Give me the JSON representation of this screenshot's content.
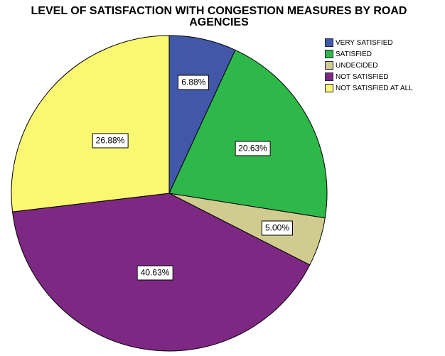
{
  "page": {
    "background_color": "#ffffff"
  },
  "chart_data": {
    "type": "pie",
    "title": "LEVEL OF SATISFACTION WITH CONGESTION MEASURES BY ROAD AGENCIES",
    "title_lines": [
      "LEVEL OF SATISFACTION WITH CONGESTION MEASURES BY ROAD",
      "AGENCIES"
    ],
    "categories": [
      "VERY SATISFIED",
      "SATISFIED",
      "UNDECIDED",
      "NOT SATISFIED",
      "NOT SATISFIED AT ALL"
    ],
    "values": [
      6.88,
      20.63,
      5.0,
      40.63,
      26.88
    ],
    "percent_labels": [
      "6.88%",
      "20.63%",
      "5.00%",
      "40.63%",
      "26.88%"
    ],
    "colors": [
      "#4157A7",
      "#2EB84A",
      "#D0CC90",
      "#7D2882",
      "#F9F870"
    ],
    "slice_border_color": "#000000",
    "start_angle_deg": 0,
    "direction": "clockwise",
    "legend_position": "top-right",
    "label_radius_frac": [
      0.72,
      0.6,
      0.72,
      0.51,
      0.5
    ],
    "label_box": {
      "fill": "#ffffff",
      "border": "#000000",
      "text_color": "#000000"
    }
  }
}
